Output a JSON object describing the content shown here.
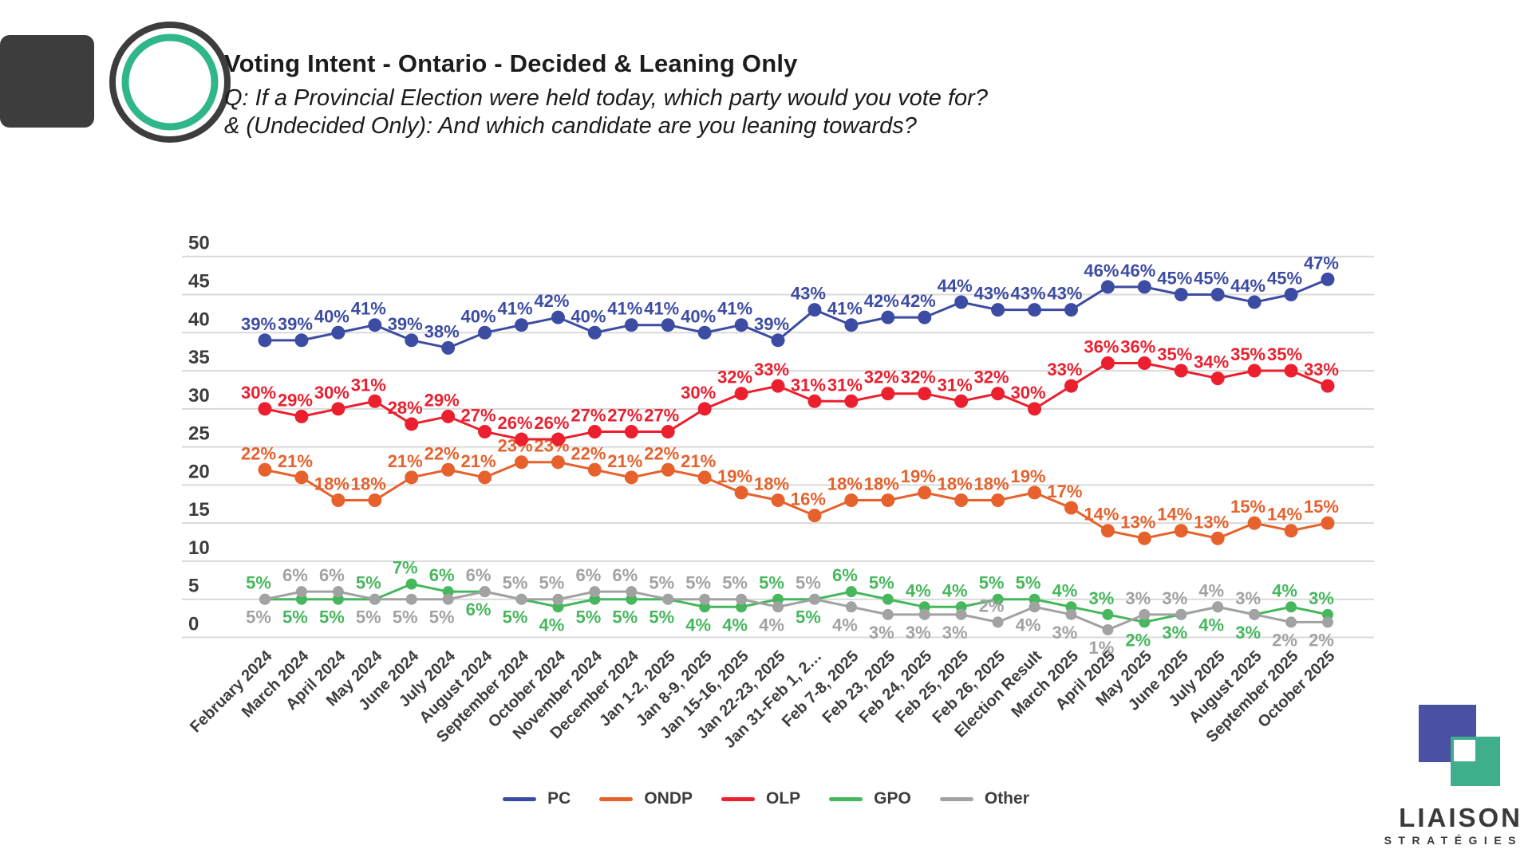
{
  "header": {
    "title": "Voting Intent - Ontario - Decided & Leaning Only",
    "subtitle_line1": "Q: If a Provincial Election were held today, which party would you vote for?",
    "subtitle_line2": "& (Undecided Only): And which candidate are you leaning towards?"
  },
  "chart_data": {
    "type": "line",
    "title": "Voting Intent - Ontario - Decided & Leaning Only",
    "value_suffix": "%",
    "ylim": [
      0,
      50
    ],
    "yticks": [
      0,
      5,
      10,
      15,
      20,
      25,
      30,
      35,
      40,
      45,
      50
    ],
    "grid": true,
    "legend_position": "bottom",
    "categories": [
      "February 2024",
      "March 2024",
      "April 2024",
      "May 2024",
      "June 2024",
      "July 2024",
      "August 2024",
      "September 2024",
      "October 2024",
      "November 2024",
      "December 2024",
      "Jan 1-2, 2025",
      "Jan 8-9, 2025",
      "Jan 15-16, 2025",
      "Jan 22-23, 2025",
      "Jan 31-Feb 1, 2…",
      "Feb 7-8, 2025",
      "Feb 23, 2025",
      "Feb 24, 2025",
      "Feb 25, 2025",
      "Feb 26, 2025",
      "Election Result",
      "March 2025",
      "April 2025",
      "May 2025",
      "June 2025",
      "July 2025",
      "August 2025",
      "September 2025",
      "October 2025"
    ],
    "series": [
      {
        "name": "PC",
        "color": "#3D4CA3",
        "values": [
          39,
          39,
          40,
          41,
          39,
          38,
          40,
          41,
          42,
          40,
          41,
          41,
          40,
          41,
          39,
          43,
          41,
          42,
          42,
          44,
          43,
          43,
          43,
          46,
          46,
          45,
          45,
          44,
          45,
          47
        ]
      },
      {
        "name": "ONDP",
        "color": "#E6612C",
        "values": [
          22,
          21,
          18,
          18,
          21,
          22,
          21,
          23,
          23,
          22,
          21,
          22,
          21,
          19,
          18,
          16,
          18,
          18,
          19,
          18,
          18,
          19,
          17,
          14,
          13,
          14,
          13,
          15,
          14,
          15
        ]
      },
      {
        "name": "OLP",
        "color": "#EB1F2E",
        "values": [
          30,
          29,
          30,
          31,
          28,
          29,
          27,
          26,
          26,
          27,
          27,
          27,
          30,
          32,
          33,
          31,
          31,
          32,
          32,
          31,
          32,
          30,
          33,
          36,
          36,
          35,
          34,
          35,
          35,
          33
        ]
      },
      {
        "name": "GPO",
        "color": "#46B75D",
        "values": [
          5,
          5,
          5,
          5,
          7,
          6,
          6,
          5,
          4,
          5,
          5,
          5,
          4,
          4,
          5,
          5,
          6,
          5,
          4,
          4,
          5,
          5,
          4,
          3,
          2,
          3,
          4,
          3,
          4,
          3
        ],
        "label_side": [
          "above",
          "below",
          "below",
          "above",
          "above",
          "above",
          "below",
          "below",
          "below",
          "below",
          "below",
          "below",
          "below",
          "below",
          "above",
          "below",
          "above",
          "above",
          "above",
          "above",
          "above",
          "above",
          "above",
          "above",
          "below",
          "below",
          "below",
          "below",
          "above",
          "above"
        ]
      },
      {
        "name": "Other",
        "color": "#A2A2A2",
        "values": [
          5,
          6,
          6,
          5,
          5,
          5,
          6,
          5,
          5,
          6,
          6,
          5,
          5,
          5,
          4,
          5,
          4,
          3,
          3,
          3,
          2,
          4,
          3,
          1,
          3,
          3,
          4,
          3,
          2,
          2
        ],
        "label_side": [
          "below",
          "above",
          "above",
          "below",
          "below",
          "below",
          "above",
          "above",
          "above",
          "above",
          "above",
          "above",
          "above",
          "above",
          "below",
          "above",
          "below",
          "below",
          "below",
          "below",
          "above",
          "below",
          "below",
          "below",
          "above",
          "above",
          "above",
          "above",
          "below",
          "below"
        ]
      }
    ]
  },
  "footer_logo": {
    "brand": "LIAISON",
    "brand_sub": "STRATÉGIES"
  },
  "colors": {
    "grid": "#DADADA",
    "axis_text": "#3D3D3D",
    "logo_dark": "#3D3D3D",
    "logo_green": "#2FB68B",
    "footer_blue": "#4A50A2",
    "footer_green": "#3FAE8C"
  }
}
